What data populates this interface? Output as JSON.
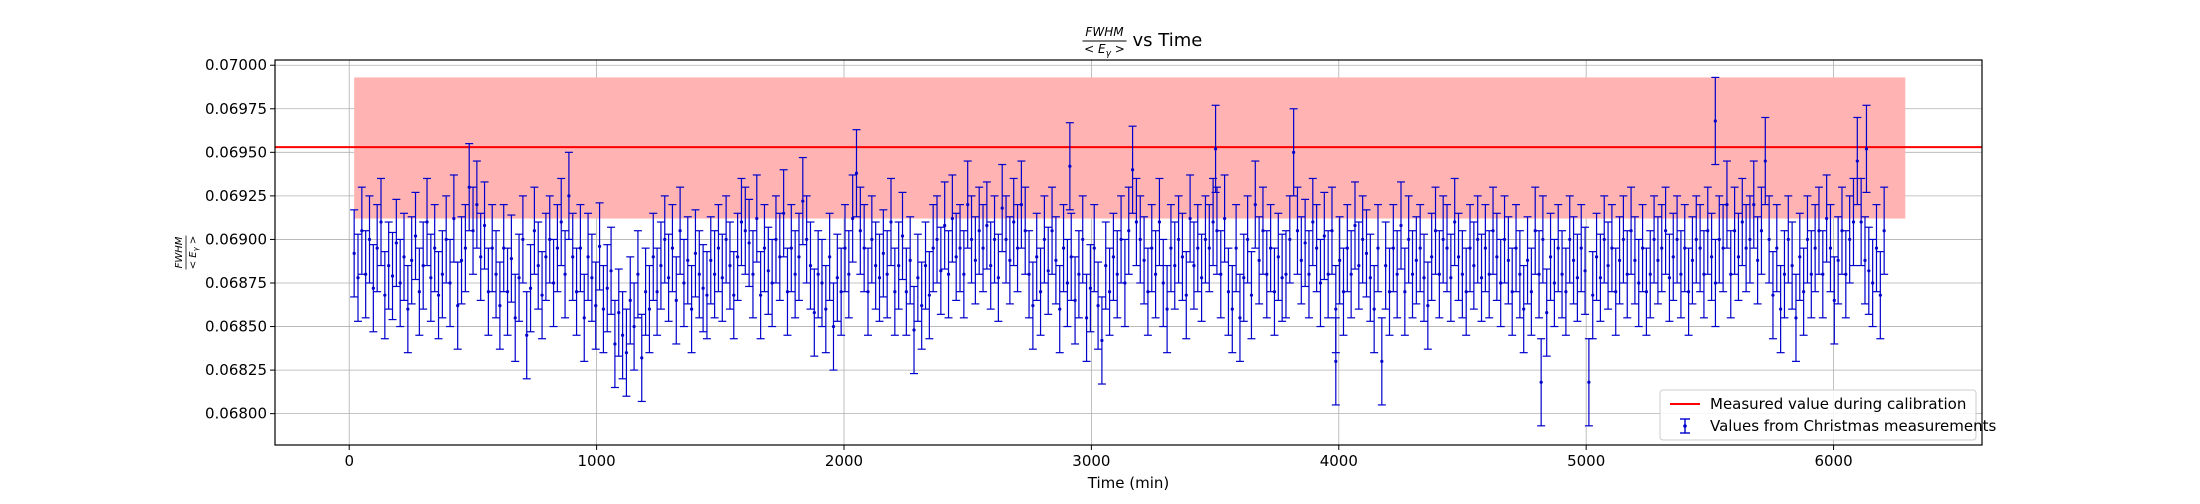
{
  "chart_data": {
    "type": "scatter",
    "title_math": "FWHM / <E_γ>",
    "title_suffix": "vs Time",
    "xlabel": "Time (min)",
    "ylabel_math": "FWHM / <E_γ>",
    "xlim": [
      -300,
      6600
    ],
    "ylim": [
      0.06782,
      0.07003
    ],
    "xticks": [
      0,
      1000,
      2000,
      3000,
      4000,
      5000,
      6000
    ],
    "xtick_labels": [
      "0",
      "1000",
      "2000",
      "3000",
      "4000",
      "5000",
      "6000"
    ],
    "yticks": [
      0.068,
      0.06825,
      0.0685,
      0.06875,
      0.069,
      0.06925,
      0.0695,
      0.06975,
      0.07
    ],
    "ytick_labels": [
      "0.06800",
      "0.06825",
      "0.06850",
      "0.06875",
      "0.06900",
      "0.06925",
      "0.06950",
      "0.06975",
      "0.07000"
    ],
    "grid": true,
    "legend_position": "lower-right",
    "calibration": {
      "name": "Measured value during calibration",
      "value": 0.06953,
      "band_low": 0.06912,
      "band_high": 0.06993,
      "band_x_start": 20,
      "band_x_end": 6290,
      "line_color": "#ff0000",
      "band_color": "#ffb3b3"
    },
    "measurements": {
      "name": "Values from Christmas measurements",
      "color": "#0000cc",
      "x_start": 20,
      "x_step": 15.5,
      "error": 0.00025,
      "values": [
        0.06892,
        0.06878,
        0.06905,
        0.0688,
        0.069,
        0.06872,
        0.06895,
        0.0691,
        0.06868,
        0.06885,
        0.06879,
        0.06898,
        0.06875,
        0.0689,
        0.0686,
        0.06888,
        0.06902,
        0.0687,
        0.06885,
        0.0691,
        0.06878,
        0.06895,
        0.06868,
        0.0688,
        0.069,
        0.06875,
        0.06912,
        0.06862,
        0.06888,
        0.06895,
        0.0693,
        0.06905,
        0.0692,
        0.0689,
        0.06908,
        0.0687,
        0.06895,
        0.0688,
        0.06862,
        0.06895,
        0.0687,
        0.06889,
        0.06855,
        0.06878,
        0.069,
        0.06845,
        0.06872,
        0.06905,
        0.06885,
        0.06868,
        0.0689,
        0.069,
        0.06875,
        0.06895,
        0.0691,
        0.0688,
        0.06925,
        0.0689,
        0.0687,
        0.06895,
        0.06855,
        0.0689,
        0.06878,
        0.06862,
        0.06896,
        0.0686,
        0.06872,
        0.06882,
        0.0684,
        0.06858,
        0.06845,
        0.06835,
        0.06865,
        0.0685,
        0.0688,
        0.06832,
        0.0687,
        0.0686,
        0.0689,
        0.0687,
        0.06885,
        0.069,
        0.06878,
        0.06895,
        0.06865,
        0.06905,
        0.06875,
        0.06888,
        0.0686,
        0.06892,
        0.0688,
        0.06872,
        0.06868,
        0.06888,
        0.0688,
        0.06895,
        0.06878,
        0.069,
        0.06885,
        0.06868,
        0.0689,
        0.0691,
        0.06905,
        0.06898,
        0.0688,
        0.06912,
        0.06868,
        0.06895,
        0.06882,
        0.06875,
        0.069,
        0.0689,
        0.06915,
        0.0687,
        0.06895,
        0.0688,
        0.0689,
        0.06922,
        0.069,
        0.06885,
        0.06858,
        0.0688,
        0.06875,
        0.0686,
        0.0689,
        0.0685,
        0.06878,
        0.0687,
        0.06895,
        0.0688,
        0.06912,
        0.06938,
        0.06905,
        0.06895,
        0.0687,
        0.069,
        0.06885,
        0.06878,
        0.06892,
        0.0688,
        0.0691,
        0.0687,
        0.06885,
        0.06902,
        0.0687,
        0.06888,
        0.06848,
        0.06878,
        0.06862,
        0.06885,
        0.06868,
        0.06895,
        0.069,
        0.06882,
        0.06908,
        0.0688,
        0.06912,
        0.0689,
        0.06895,
        0.0688,
        0.0692,
        0.069,
        0.06888,
        0.06905,
        0.06895,
        0.06908,
        0.06885,
        0.069,
        0.06878,
        0.06918,
        0.069,
        0.06888,
        0.0691,
        0.06895,
        0.0692,
        0.06905,
        0.0688,
        0.06862,
        0.0689,
        0.0687,
        0.069,
        0.06882,
        0.06905,
        0.06888,
        0.0686,
        0.06895,
        0.06875,
        0.0689,
        0.06865,
        0.0688,
        0.069,
        0.06855,
        0.06872,
        0.06895,
        0.06862,
        0.06842,
        0.06885,
        0.0687,
        0.0689,
        0.0688,
        0.069,
        0.06875,
        0.06905,
        0.0694,
        0.0691,
        0.069,
        0.06888,
        0.0687,
        0.06895,
        0.0688,
        0.0691,
        0.06875,
        0.0686,
        0.06895,
        0.06885,
        0.069,
        0.0689,
        0.06868,
        0.06912,
        0.06885,
        0.06895,
        0.06878,
        0.069,
        0.06895,
        0.0691,
        0.06905,
        0.0688,
        0.06912,
        0.0687,
        0.0686,
        0.06895,
        0.06855,
        0.06878,
        0.069,
        0.06868,
        0.0692,
        0.06888,
        0.06905,
        0.0688,
        0.06895,
        0.0687,
        0.0689,
        0.06878,
        0.0688,
        0.069,
        0.0695,
        0.06905,
        0.06888,
        0.06898,
        0.0688,
        0.0691,
        0.06895,
        0.06875,
        0.06902,
        0.0688,
        0.06905,
        0.0686,
        0.06888,
        0.0687,
        0.06895,
        0.0688,
        0.06908,
        0.06885,
        0.069,
        0.06892,
        0.06878,
        0.0686,
        0.06895,
        0.0683,
        0.06885,
        0.0687,
        0.06895,
        0.0688,
        0.06908,
        0.0687,
        0.069,
        0.0688,
        0.06888,
        0.06895,
        0.06878,
        0.06862,
        0.0689,
        0.06905,
        0.0688,
        0.069,
        0.06895,
        0.06878,
        0.0691,
        0.0689,
        0.0688,
        0.0687,
        0.06895,
        0.06885,
        0.069,
        0.06878,
        0.06895,
        0.0688,
        0.06905,
        0.0689,
        0.06875,
        0.069,
        0.06888,
        0.0687,
        0.06895,
        0.0688,
        0.0686,
        0.06888,
        0.0687,
        0.06905,
        0.0688,
        0.069,
        0.06858,
        0.0689,
        0.06875,
        0.06895,
        0.0688,
        0.0687,
        0.069,
        0.06888,
        0.06878,
        0.06895,
        0.06882,
        0.06818,
        0.06868,
        0.0689,
        0.06878,
        0.069,
        0.06885,
        0.06895,
        0.0687,
        0.06888,
        0.069,
        0.0688,
        0.06905,
        0.06888,
        0.06875,
        0.06895,
        0.0687,
        0.0688,
        0.069,
        0.06888,
        0.06895,
        0.06905,
        0.06878,
        0.0689,
        0.069,
        0.0688,
        0.06895,
        0.0687,
        0.06888,
        0.069,
        0.06895,
        0.0688,
        0.06905,
        0.0689,
        0.06875,
        0.069,
        0.06895,
        0.0692,
        0.0688,
        0.06905,
        0.0689,
        0.0691,
        0.06895,
        0.069,
        0.0692,
        0.06888,
        0.06905,
        0.06945,
        0.069,
        0.06868,
        0.06895,
        0.0686,
        0.0688,
        0.069,
        0.06885,
        0.06855,
        0.0689,
        0.0687,
        0.069,
        0.0688,
        0.06895,
        0.06905,
        0.0688,
        0.06912,
        0.06895,
        0.06865,
        0.06888,
        0.06905,
        0.0688,
        0.069,
        0.0691,
        0.06945,
        0.0691,
        0.06888,
        0.06882,
        0.06875,
        0.06895,
        0.06868,
        0.06905
      ],
      "overrides": {
        "2913": 0.06942,
        "3502": 0.06952,
        "3988": 0.0683,
        "4818": 0.06818,
        "5522": 0.06968,
        "6133": 0.06952
      }
    }
  }
}
